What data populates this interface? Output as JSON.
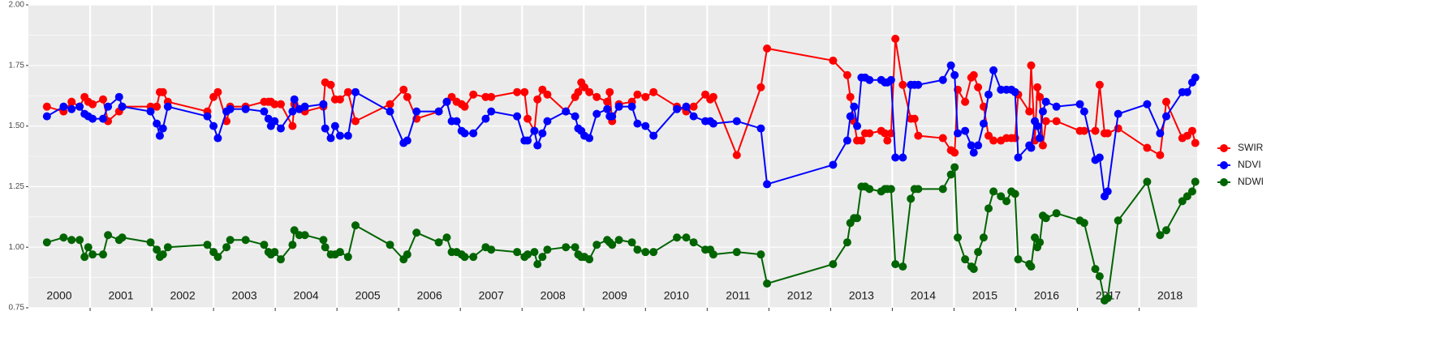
{
  "chart_data": {
    "type": "line",
    "x": [
      2000.3,
      2000.57,
      2000.7,
      2000.83,
      2000.91,
      2000.97,
      2001.04,
      2001.21,
      2001.29,
      2001.47,
      2001.52,
      2001.98,
      2002.08,
      2002.13,
      2002.18,
      2002.26,
      2002.9,
      2003.0,
      2003.07,
      2003.21,
      2003.27,
      2003.52,
      2003.82,
      2003.89,
      2003.93,
      2003.99,
      2004.09,
      2004.28,
      2004.31,
      2004.39,
      2004.48,
      2004.78,
      2004.81,
      2004.9,
      2004.97,
      2005.05,
      2005.18,
      2005.3,
      2005.86,
      2006.08,
      2006.14,
      2006.29,
      2006.65,
      2006.78,
      2006.86,
      2006.94,
      2007.02,
      2007.07,
      2007.21,
      2007.41,
      2007.5,
      2007.92,
      2008.04,
      2008.09,
      2008.2,
      2008.25,
      2008.33,
      2008.41,
      2008.71,
      2008.86,
      2008.91,
      2008.96,
      2009.01,
      2009.09,
      2009.21,
      2009.38,
      2009.42,
      2009.46,
      2009.57,
      2009.78,
      2009.87,
      2010.0,
      2010.13,
      2010.51,
      2010.66,
      2010.78,
      2010.97,
      2011.05,
      2011.1,
      2011.48,
      2011.87,
      2011.97,
      2013.04,
      2013.27,
      2013.32,
      2013.38,
      2013.43,
      2013.5,
      2013.56,
      2013.63,
      2013.82,
      2013.88,
      2013.92,
      2013.98,
      2014.05,
      2014.17,
      2014.3,
      2014.36,
      2014.42,
      2014.82,
      2014.95,
      2015.01,
      2015.06,
      2015.18,
      2015.28,
      2015.32,
      2015.39,
      2015.48,
      2015.56,
      2015.64,
      2015.76,
      2015.85,
      2015.93,
      2015.99,
      2016.04,
      2016.22,
      2016.25,
      2016.31,
      2016.35,
      2016.39,
      2016.44,
      2016.49,
      2016.66,
      2017.04,
      2017.11,
      2017.29,
      2017.36,
      2017.44,
      2017.49,
      2017.66,
      2018.13,
      2018.34,
      2018.44,
      2018.7,
      2018.78,
      2018.86,
      2018.91
    ],
    "series": [
      {
        "name": "SWIR",
        "color": "#ff0000",
        "values": [
          1.58,
          1.56,
          1.6,
          1.58,
          1.62,
          1.6,
          1.59,
          1.61,
          1.52,
          1.56,
          1.58,
          1.58,
          1.58,
          1.64,
          1.64,
          1.6,
          1.56,
          1.62,
          1.64,
          1.52,
          1.58,
          1.58,
          1.6,
          1.6,
          1.6,
          1.59,
          1.59,
          1.5,
          1.59,
          1.57,
          1.56,
          1.58,
          1.68,
          1.67,
          1.61,
          1.61,
          1.64,
          1.52,
          1.59,
          1.65,
          1.62,
          1.53,
          1.56,
          1.6,
          1.62,
          1.6,
          1.59,
          1.58,
          1.63,
          1.62,
          1.62,
          1.64,
          1.64,
          1.53,
          1.48,
          1.61,
          1.65,
          1.63,
          1.56,
          1.62,
          1.64,
          1.68,
          1.66,
          1.64,
          1.62,
          1.6,
          1.64,
          1.52,
          1.59,
          1.6,
          1.63,
          1.62,
          1.64,
          1.58,
          1.56,
          1.58,
          1.63,
          1.61,
          1.62,
          1.38,
          1.66,
          1.82,
          1.77,
          1.71,
          1.62,
          1.52,
          1.44,
          1.44,
          1.47,
          1.47,
          1.48,
          1.47,
          1.44,
          1.47,
          1.86,
          1.67,
          1.53,
          1.53,
          1.46,
          1.45,
          1.4,
          1.39,
          1.65,
          1.6,
          1.7,
          1.71,
          1.66,
          1.58,
          1.46,
          1.44,
          1.44,
          1.45,
          1.45,
          1.45,
          1.63,
          1.56,
          1.75,
          1.44,
          1.66,
          1.62,
          1.42,
          1.52,
          1.52,
          1.48,
          1.48,
          1.48,
          1.67,
          1.47,
          1.47,
          1.49,
          1.41,
          1.38,
          1.6,
          1.45,
          1.46,
          1.48,
          1.43
        ]
      },
      {
        "name": "NDVI",
        "color": "#0000ff",
        "values": [
          1.54,
          1.58,
          1.57,
          1.58,
          1.55,
          1.54,
          1.53,
          1.53,
          1.58,
          1.62,
          1.58,
          1.56,
          1.51,
          1.46,
          1.49,
          1.58,
          1.54,
          1.5,
          1.45,
          1.56,
          1.57,
          1.57,
          1.56,
          1.53,
          1.5,
          1.52,
          1.49,
          1.56,
          1.61,
          1.57,
          1.58,
          1.59,
          1.49,
          1.45,
          1.5,
          1.46,
          1.46,
          1.64,
          1.56,
          1.43,
          1.44,
          1.56,
          1.56,
          1.6,
          1.52,
          1.52,
          1.48,
          1.47,
          1.47,
          1.53,
          1.56,
          1.54,
          1.44,
          1.44,
          1.48,
          1.42,
          1.47,
          1.52,
          1.56,
          1.54,
          1.49,
          1.48,
          1.46,
          1.45,
          1.55,
          1.57,
          1.54,
          1.54,
          1.58,
          1.58,
          1.51,
          1.5,
          1.46,
          1.57,
          1.58,
          1.54,
          1.52,
          1.52,
          1.51,
          1.52,
          1.49,
          1.26,
          1.34,
          1.44,
          1.54,
          1.58,
          1.5,
          1.7,
          1.7,
          1.69,
          1.69,
          1.68,
          1.68,
          1.69,
          1.37,
          1.37,
          1.67,
          1.67,
          1.67,
          1.69,
          1.75,
          1.71,
          1.47,
          1.48,
          1.42,
          1.39,
          1.42,
          1.51,
          1.63,
          1.73,
          1.65,
          1.65,
          1.65,
          1.64,
          1.37,
          1.42,
          1.41,
          1.52,
          1.5,
          1.45,
          1.56,
          1.6,
          1.58,
          1.59,
          1.56,
          1.36,
          1.37,
          1.21,
          1.23,
          1.55,
          1.59,
          1.47,
          1.54,
          1.64,
          1.64,
          1.68,
          1.7
        ]
      },
      {
        "name": "NDWI",
        "color": "#006400",
        "values": [
          1.02,
          1.04,
          1.03,
          1.03,
          0.96,
          1.0,
          0.97,
          0.97,
          1.05,
          1.03,
          1.04,
          1.02,
          0.99,
          0.96,
          0.97,
          1.0,
          1.01,
          0.98,
          0.96,
          1.0,
          1.03,
          1.03,
          1.01,
          0.98,
          0.97,
          0.98,
          0.95,
          1.01,
          1.07,
          1.05,
          1.05,
          1.03,
          1.0,
          0.97,
          0.97,
          0.98,
          0.96,
          1.09,
          1.01,
          0.95,
          0.97,
          1.06,
          1.02,
          1.04,
          0.98,
          0.98,
          0.97,
          0.96,
          0.96,
          1.0,
          0.99,
          0.98,
          0.96,
          0.97,
          0.98,
          0.93,
          0.96,
          0.99,
          1.0,
          1.0,
          0.97,
          0.96,
          0.96,
          0.95,
          1.01,
          1.03,
          1.02,
          1.01,
          1.03,
          1.02,
          0.99,
          0.98,
          0.98,
          1.04,
          1.04,
          1.02,
          0.99,
          0.99,
          0.97,
          0.98,
          0.97,
          0.85,
          0.93,
          1.02,
          1.1,
          1.12,
          1.12,
          1.25,
          1.25,
          1.24,
          1.23,
          1.24,
          1.24,
          1.24,
          0.93,
          0.92,
          1.2,
          1.24,
          1.24,
          1.24,
          1.3,
          1.33,
          1.04,
          0.95,
          0.92,
          0.91,
          0.98,
          1.04,
          1.16,
          1.23,
          1.21,
          1.19,
          1.23,
          1.22,
          0.95,
          0.93,
          0.92,
          1.04,
          1.0,
          1.02,
          1.13,
          1.12,
          1.14,
          1.11,
          1.1,
          0.91,
          0.88,
          0.78,
          0.79,
          1.11,
          1.27,
          1.05,
          1.07,
          1.19,
          1.21,
          1.23,
          1.27
        ]
      }
    ],
    "xlim": [
      2000,
      2018.94
    ],
    "xticks": [
      2001,
      2002,
      2003,
      2004,
      2005,
      2006,
      2007,
      2008,
      2009,
      2010,
      2011,
      2012,
      2013,
      2014,
      2015,
      2016,
      2017,
      2018
    ],
    "year_labels": [
      "2000",
      "2001",
      "2002",
      "2003",
      "2004",
      "2005",
      "2006",
      "2007",
      "2008",
      "2009",
      "2010",
      "2011",
      "2012",
      "2013",
      "2014",
      "2015",
      "2016",
      "2017",
      "2018"
    ],
    "ylim": [
      0.75,
      2.0
    ],
    "yticks": [
      0.75,
      {
        "value": 1.0,
        "label": "1.00"
      },
      1.25,
      {
        "value": 1.5,
        "label": "1.50"
      },
      1.75,
      {
        "value": 2.0,
        "label": "2.00"
      }
    ],
    "grid": true,
    "legend_position": "right"
  }
}
